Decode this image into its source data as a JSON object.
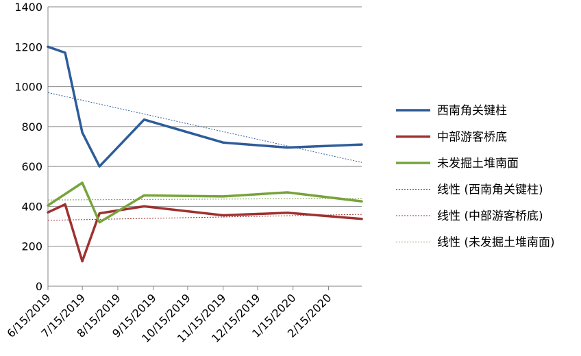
{
  "chart_data": {
    "type": "line",
    "title": "",
    "xlabel": "",
    "ylabel": "",
    "ylim": [
      0,
      1400
    ],
    "y_ticks": [
      0,
      200,
      400,
      600,
      800,
      1000,
      1200,
      1400
    ],
    "x_range": [
      "2019-06-15",
      "2020-03-15"
    ],
    "x_ticks": [
      "2019-06-15",
      "2019-07-15",
      "2019-08-15",
      "2019-09-15",
      "2019-10-15",
      "2019-11-15",
      "2019-12-15",
      "2020-01-15",
      "2020-02-15"
    ],
    "x_tick_labels": [
      "6/15/2019",
      "7/15/2019",
      "8/15/2019",
      "9/15/2019",
      "10/15/2019",
      "11/15/2019",
      "12/15/2019",
      "1/15/2020",
      "2/15/2020"
    ],
    "grid": "horizontal",
    "legend_position": "right",
    "series": [
      {
        "name": "西南角关键柱",
        "color": "#2E5C9A",
        "points": [
          [
            "2019-06-15",
            1200
          ],
          [
            "2019-06-30",
            1170
          ],
          [
            "2019-07-15",
            770
          ],
          [
            "2019-07-30",
            600
          ],
          [
            "2019-09-07",
            835
          ],
          [
            "2019-11-15",
            720
          ],
          [
            "2020-01-10",
            695
          ],
          [
            "2020-03-15",
            710
          ]
        ]
      },
      {
        "name": "中部游客桥底",
        "color": "#9E3130",
        "points": [
          [
            "2019-06-15",
            370
          ],
          [
            "2019-06-30",
            410
          ],
          [
            "2019-07-15",
            125
          ],
          [
            "2019-07-30",
            365
          ],
          [
            "2019-09-07",
            400
          ],
          [
            "2019-11-15",
            355
          ],
          [
            "2020-01-10",
            368
          ],
          [
            "2020-03-15",
            337
          ]
        ]
      },
      {
        "name": "未发掘土堆南面",
        "color": "#77A33C",
        "points": [
          [
            "2019-06-15",
            405
          ],
          [
            "2019-07-15",
            518
          ],
          [
            "2019-07-30",
            320
          ],
          [
            "2019-09-07",
            455
          ],
          [
            "2019-11-15",
            450
          ],
          [
            "2020-01-10",
            470
          ],
          [
            "2020-03-15",
            425
          ]
        ]
      }
    ],
    "trendlines": [
      {
        "name": "线性 (西南角关键柱)",
        "color": "#2E5C9A",
        "of": 0,
        "values": [
          [
            "2019-06-15",
            970
          ],
          [
            "2020-03-15",
            620
          ]
        ]
      },
      {
        "name": "线性 (中部游客桥底)",
        "color": "#9E3130",
        "of": 1,
        "values": [
          [
            "2019-06-15",
            330
          ],
          [
            "2020-03-15",
            360
          ]
        ]
      },
      {
        "name": "线性 (未发掘土堆南面)",
        "color": "#77A33C",
        "of": 2,
        "values": [
          [
            "2019-06-15",
            432
          ],
          [
            "2020-03-15",
            440
          ]
        ]
      }
    ]
  }
}
